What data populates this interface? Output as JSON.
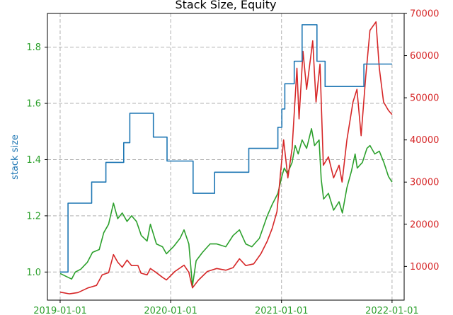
{
  "chart_data": {
    "type": "line",
    "title": "Stack Size, Equity",
    "ylabel_left": "stack size",
    "ylabel_right": "",
    "xlim": [
      "2018-11-20",
      "2022-02-10"
    ],
    "ylim_left": [
      0.9,
      1.92
    ],
    "ylim_right": [
      2000,
      70000
    ],
    "x_ticks": [
      "2019-01-01",
      "2020-01-01",
      "2021-01-01",
      "2022-01-01"
    ],
    "y_left_ticks": [
      "1.0",
      "1.2",
      "1.4",
      "1.6",
      "1.8"
    ],
    "y_right_ticks": [
      "10000",
      "20000",
      "30000",
      "40000",
      "50000",
      "60000",
      "70000"
    ],
    "grid": true,
    "colors": {
      "stack_size": "#1f77b4",
      "equity": "#2ca02c",
      "price": "#d62728",
      "grid": "#b0b0b0",
      "left_axis": "#1f77b4",
      "left_ticks": "#2ca02c",
      "right_axis": "#d62728"
    },
    "series": [
      {
        "key": "stack_size",
        "axis": "left",
        "step": true,
        "points": [
          [
            "2019-01-01",
            1.0
          ],
          [
            "2019-01-27",
            1.245
          ],
          [
            "2019-04-15",
            1.32
          ],
          [
            "2019-06-01",
            1.39
          ],
          [
            "2019-07-30",
            1.46
          ],
          [
            "2019-08-19",
            1.565
          ],
          [
            "2019-11-05",
            1.48
          ],
          [
            "2019-12-20",
            1.395
          ],
          [
            "2020-03-15",
            1.28
          ],
          [
            "2020-05-25",
            1.355
          ],
          [
            "2020-09-15",
            1.44
          ],
          [
            "2020-12-20",
            1.515
          ],
          [
            "2021-01-02",
            1.58
          ],
          [
            "2021-01-12",
            1.67
          ],
          [
            "2021-02-12",
            1.75
          ],
          [
            "2021-03-10",
            1.88
          ],
          [
            "2021-04-28",
            1.75
          ],
          [
            "2021-05-25",
            1.66
          ],
          [
            "2021-09-30",
            1.74
          ],
          [
            "2022-01-01",
            1.74
          ]
        ]
      },
      {
        "key": "equity",
        "axis": "left",
        "step": false,
        "points": [
          [
            "2019-01-01",
            0.995
          ],
          [
            "2019-01-20",
            0.985
          ],
          [
            "2019-02-08",
            0.975
          ],
          [
            "2019-02-20",
            1.0
          ],
          [
            "2019-03-10",
            1.01
          ],
          [
            "2019-04-01",
            1.035
          ],
          [
            "2019-04-18",
            1.07
          ],
          [
            "2019-05-10",
            1.08
          ],
          [
            "2019-05-25",
            1.14
          ],
          [
            "2019-06-10",
            1.17
          ],
          [
            "2019-06-26",
            1.245
          ],
          [
            "2019-07-10",
            1.19
          ],
          [
            "2019-07-25",
            1.21
          ],
          [
            "2019-08-10",
            1.18
          ],
          [
            "2019-08-25",
            1.2
          ],
          [
            "2019-09-10",
            1.18
          ],
          [
            "2019-09-26",
            1.13
          ],
          [
            "2019-10-15",
            1.11
          ],
          [
            "2019-10-26",
            1.17
          ],
          [
            "2019-11-15",
            1.1
          ],
          [
            "2019-12-05",
            1.09
          ],
          [
            "2019-12-18",
            1.065
          ],
          [
            "2020-01-10",
            1.09
          ],
          [
            "2020-02-01",
            1.12
          ],
          [
            "2020-02-14",
            1.15
          ],
          [
            "2020-03-01",
            1.1
          ],
          [
            "2020-03-13",
            0.95
          ],
          [
            "2020-03-25",
            1.04
          ],
          [
            "2020-04-15",
            1.07
          ],
          [
            "2020-05-10",
            1.1
          ],
          [
            "2020-06-01",
            1.1
          ],
          [
            "2020-07-01",
            1.09
          ],
          [
            "2020-07-25",
            1.13
          ],
          [
            "2020-08-15",
            1.15
          ],
          [
            "2020-09-05",
            1.1
          ],
          [
            "2020-09-25",
            1.09
          ],
          [
            "2020-10-20",
            1.12
          ],
          [
            "2020-11-15",
            1.2
          ],
          [
            "2020-12-01",
            1.24
          ],
          [
            "2020-12-20",
            1.28
          ],
          [
            "2021-01-02",
            1.34
          ],
          [
            "2021-01-10",
            1.37
          ],
          [
            "2021-01-20",
            1.35
          ],
          [
            "2021-02-05",
            1.39
          ],
          [
            "2021-02-15",
            1.45
          ],
          [
            "2021-02-25",
            1.42
          ],
          [
            "2021-03-10",
            1.47
          ],
          [
            "2021-03-25",
            1.44
          ],
          [
            "2021-04-10",
            1.51
          ],
          [
            "2021-04-20",
            1.45
          ],
          [
            "2021-05-05",
            1.47
          ],
          [
            "2021-05-12",
            1.33
          ],
          [
            "2021-05-20",
            1.26
          ],
          [
            "2021-06-05",
            1.28
          ],
          [
            "2021-06-22",
            1.22
          ],
          [
            "2021-07-10",
            1.25
          ],
          [
            "2021-07-21",
            1.21
          ],
          [
            "2021-08-05",
            1.3
          ],
          [
            "2021-08-20",
            1.36
          ],
          [
            "2021-09-01",
            1.42
          ],
          [
            "2021-09-08",
            1.37
          ],
          [
            "2021-09-25",
            1.39
          ],
          [
            "2021-10-10",
            1.44
          ],
          [
            "2021-10-20",
            1.45
          ],
          [
            "2021-11-05",
            1.42
          ],
          [
            "2021-11-20",
            1.43
          ],
          [
            "2021-12-05",
            1.39
          ],
          [
            "2021-12-20",
            1.34
          ],
          [
            "2022-01-01",
            1.32
          ]
        ]
      },
      {
        "key": "price",
        "axis": "right",
        "step": false,
        "points": [
          [
            "2019-01-01",
            3900
          ],
          [
            "2019-02-01",
            3500
          ],
          [
            "2019-03-01",
            3800
          ],
          [
            "2019-04-03",
            4900
          ],
          [
            "2019-05-01",
            5500
          ],
          [
            "2019-05-20",
            8000
          ],
          [
            "2019-06-10",
            8500
          ],
          [
            "2019-06-26",
            12800
          ],
          [
            "2019-07-10",
            11000
          ],
          [
            "2019-07-25",
            9800
          ],
          [
            "2019-08-10",
            11500
          ],
          [
            "2019-08-25",
            10200
          ],
          [
            "2019-09-15",
            10200
          ],
          [
            "2019-09-25",
            8400
          ],
          [
            "2019-10-15",
            8000
          ],
          [
            "2019-10-26",
            9500
          ],
          [
            "2019-11-15",
            8500
          ],
          [
            "2019-12-05",
            7400
          ],
          [
            "2019-12-18",
            6800
          ],
          [
            "2020-01-15",
            8800
          ],
          [
            "2020-02-14",
            10300
          ],
          [
            "2020-03-01",
            8600
          ],
          [
            "2020-03-13",
            4900
          ],
          [
            "2020-04-01",
            6700
          ],
          [
            "2020-05-01",
            8800
          ],
          [
            "2020-06-01",
            9500
          ],
          [
            "2020-07-01",
            9100
          ],
          [
            "2020-07-25",
            9700
          ],
          [
            "2020-08-15",
            11800
          ],
          [
            "2020-09-05",
            10200
          ],
          [
            "2020-10-01",
            10600
          ],
          [
            "2020-10-25",
            13000
          ],
          [
            "2020-11-15",
            16000
          ],
          [
            "2020-12-01",
            19000
          ],
          [
            "2020-12-17",
            23000
          ],
          [
            "2021-01-08",
            40000
          ],
          [
            "2021-01-22",
            31000
          ],
          [
            "2021-02-05",
            38000
          ],
          [
            "2021-02-21",
            57000
          ],
          [
            "2021-02-28",
            45000
          ],
          [
            "2021-03-13",
            61000
          ],
          [
            "2021-03-25",
            52000
          ],
          [
            "2021-04-14",
            63500
          ],
          [
            "2021-04-25",
            49000
          ],
          [
            "2021-05-08",
            58000
          ],
          [
            "2021-05-19",
            34000
          ],
          [
            "2021-06-05",
            36000
          ],
          [
            "2021-06-22",
            31000
          ],
          [
            "2021-07-10",
            34000
          ],
          [
            "2021-07-20",
            30000
          ],
          [
            "2021-08-05",
            40000
          ],
          [
            "2021-08-25",
            49000
          ],
          [
            "2021-09-07",
            52000
          ],
          [
            "2021-09-21",
            41000
          ],
          [
            "2021-10-06",
            55000
          ],
          [
            "2021-10-20",
            66000
          ],
          [
            "2021-11-09",
            68000
          ],
          [
            "2021-11-20",
            57000
          ],
          [
            "2021-12-04",
            49000
          ],
          [
            "2021-12-20",
            47000
          ],
          [
            "2022-01-01",
            46000
          ]
        ]
      }
    ]
  }
}
